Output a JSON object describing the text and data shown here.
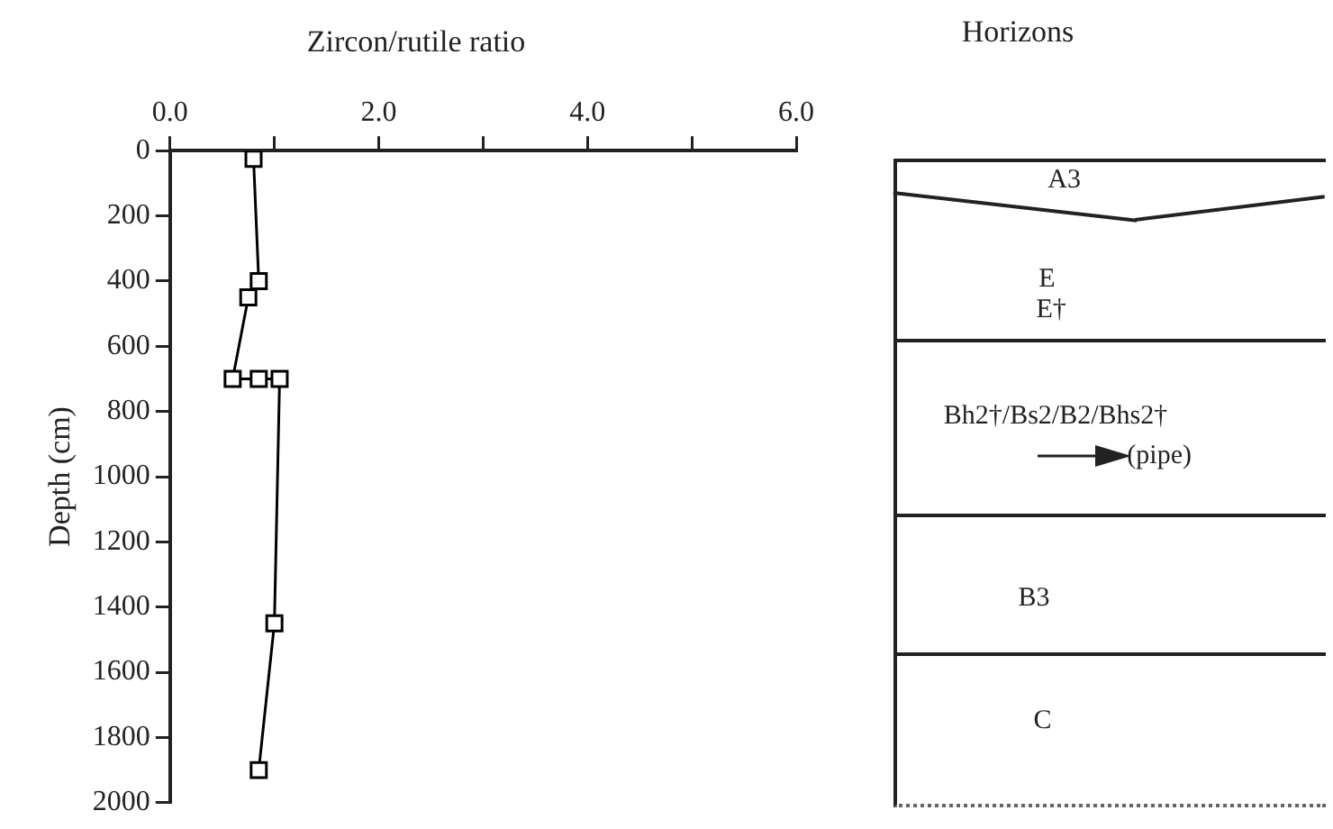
{
  "chart_data": [
    {
      "type": "line",
      "title": "Zircon/rutile ratio",
      "ylabel": "Depth (cm)",
      "marker": "square",
      "line_style": "solid",
      "grid": false,
      "legend": false,
      "series": [
        {
          "color": "#000000",
          "x": [
            0.8,
            0.85,
            0.75,
            0.6,
            0.85,
            1.05,
            1.0,
            0.85
          ],
          "values": [
            25,
            400,
            450,
            700,
            700,
            700,
            1450,
            1900
          ]
        }
      ],
      "xlim": [
        0,
        6
      ],
      "xticks": [
        {
          "value": 0,
          "label": "0.0"
        },
        {
          "value": 1,
          "label": null
        },
        {
          "value": 2,
          "label": "2.0"
        },
        {
          "value": 3,
          "label": null
        },
        {
          "value": 4,
          "label": "4.0"
        },
        {
          "value": 5,
          "label": null
        },
        {
          "value": 6,
          "label": "6.0"
        }
      ],
      "ylim": [
        2000,
        0
      ],
      "yticks": [
        0,
        200,
        400,
        600,
        800,
        1000,
        1200,
        1400,
        1600,
        1800,
        2000
      ]
    },
    {
      "type": "other",
      "title": "Horizons",
      "annotations": [
        "A3",
        "E",
        "E†",
        "Bh2†/Bs2/B2/Bhs2†",
        "(pipe)",
        "B3",
        "C"
      ]
    }
  ]
}
